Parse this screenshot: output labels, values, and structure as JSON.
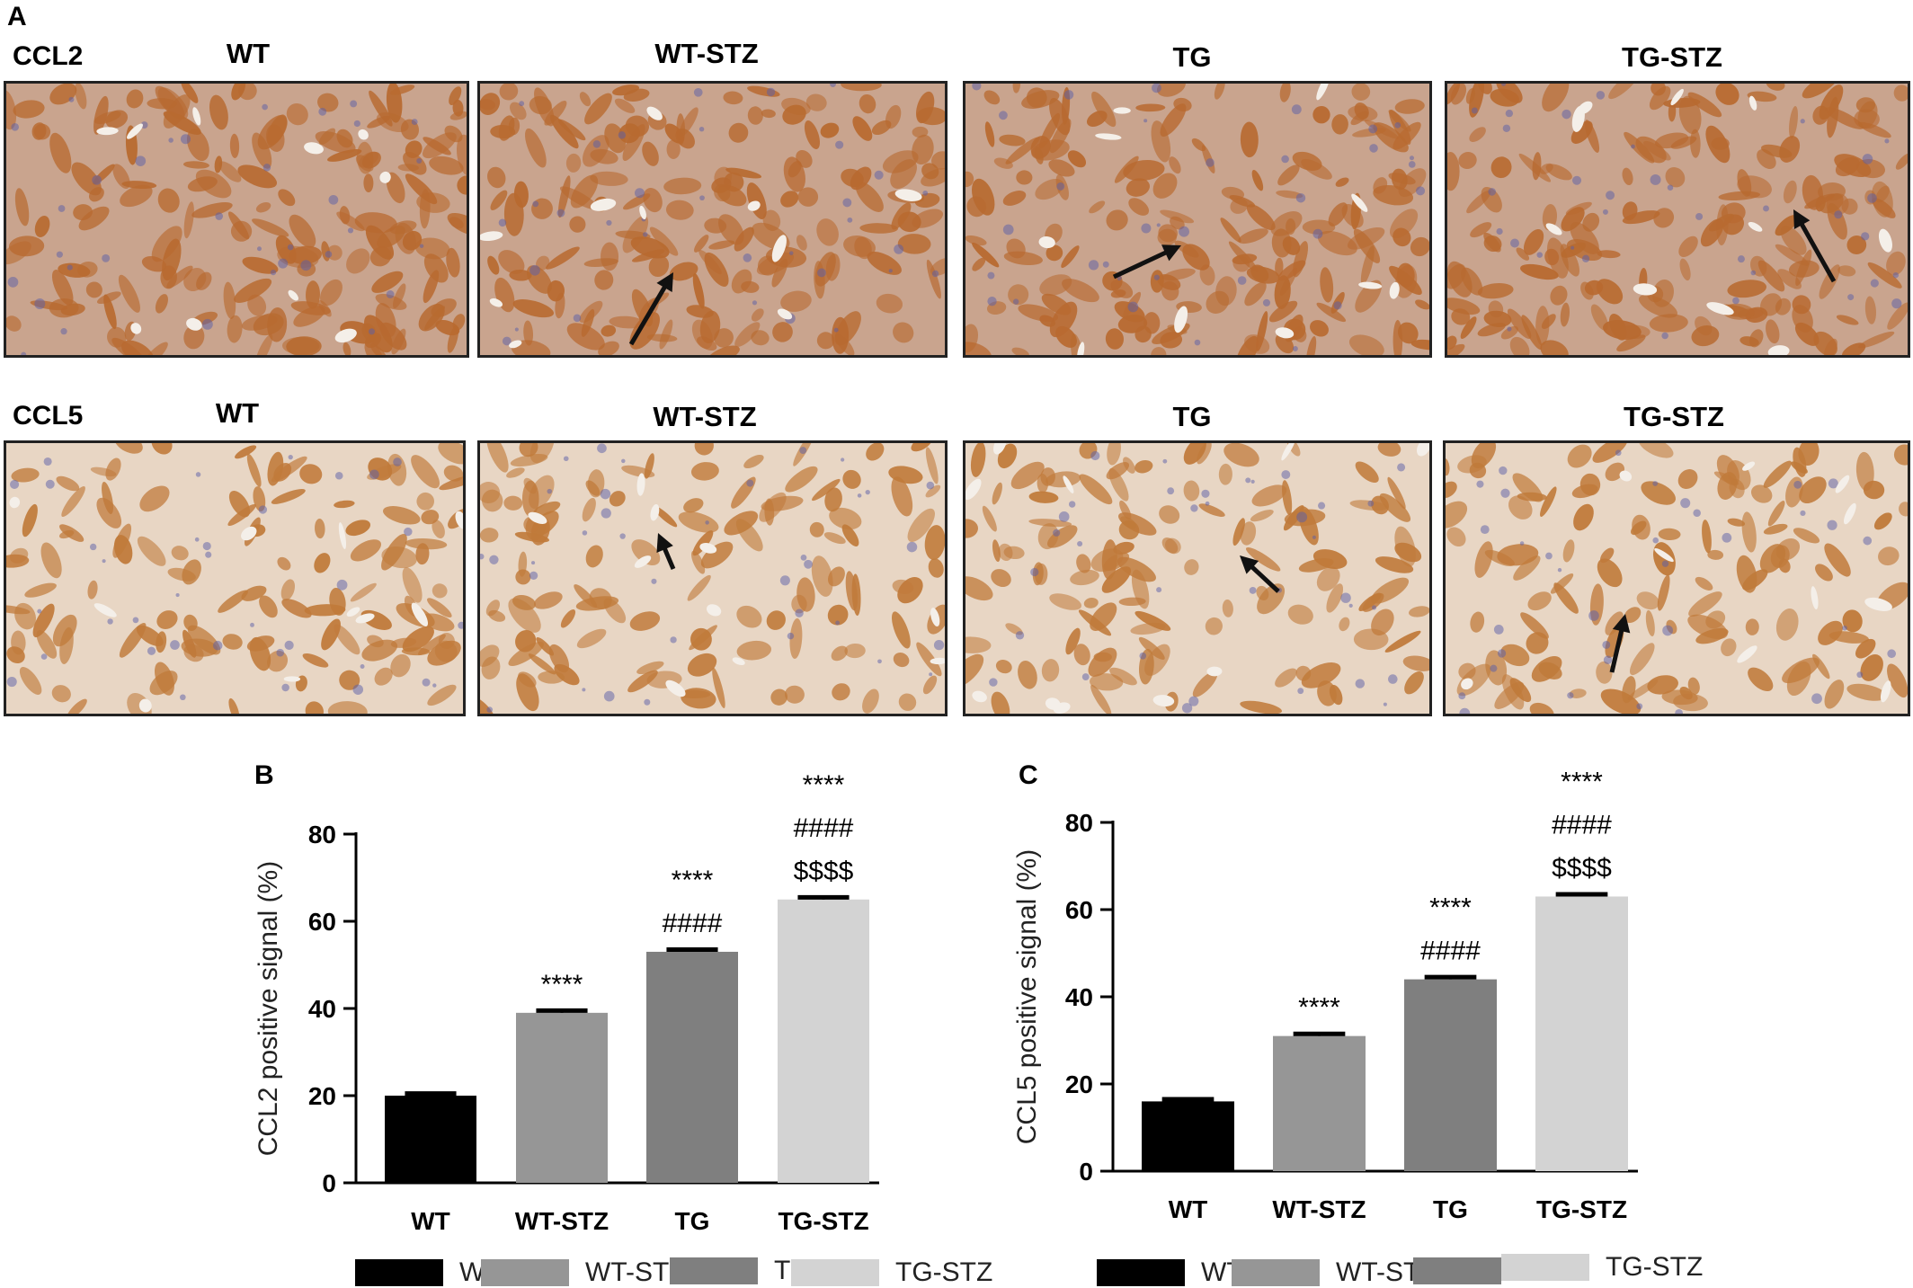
{
  "panel_labels": {
    "a": "A",
    "b": "B",
    "c": "C"
  },
  "micrographs": {
    "rows": [
      {
        "label": "CCL2",
        "columns": [
          "WT",
          "WT-STZ",
          "TG",
          "TG-STZ"
        ],
        "stain": "#b86a30",
        "background": "#c9a48e"
      },
      {
        "label": "CCL5",
        "columns": [
          "WT",
          "WT-STZ",
          "TG",
          "TG-STZ"
        ],
        "stain": "#c07a3a",
        "background": "#e8d6c4"
      }
    ]
  },
  "chart_data": [
    {
      "type": "bar",
      "panel": "B",
      "categories": [
        "WT",
        "WT-STZ",
        "TG",
        "TG-STZ"
      ],
      "values": [
        20,
        39,
        53,
        65
      ],
      "errors": [
        0.5,
        0.5,
        0.5,
        0.5
      ],
      "colors": [
        "#000000",
        "#969696",
        "#7f7f7f",
        "#d3d3d3"
      ],
      "ylabel": "CCL2 positive signal (%)",
      "ylim": [
        0,
        80
      ],
      "yticks": [
        0,
        20,
        40,
        60,
        80
      ],
      "significance": [
        [],
        [
          "****"
        ],
        [
          "****",
          "####"
        ],
        [
          "****",
          "####",
          "$$$$"
        ]
      ],
      "legend": [
        "WT",
        "WT-STZ",
        "TG",
        "TG-STZ"
      ],
      "legend_position": "bottom"
    },
    {
      "type": "bar",
      "panel": "C",
      "categories": [
        "WT",
        "WT-STZ",
        "TG",
        "TG-STZ"
      ],
      "values": [
        16,
        31,
        44,
        63
      ],
      "errors": [
        0.5,
        0.5,
        0.5,
        0.5
      ],
      "colors": [
        "#000000",
        "#969696",
        "#7f7f7f",
        "#d3d3d3"
      ],
      "ylabel": "CCL5 positive signal (%)",
      "ylim": [
        0,
        80
      ],
      "yticks": [
        0,
        20,
        40,
        60,
        80
      ],
      "significance": [
        [],
        [
          "****"
        ],
        [
          "****",
          "####"
        ],
        [
          "****",
          "####",
          "$$$$"
        ]
      ],
      "legend": [
        "WT",
        "WT-STZ",
        "TG",
        "TG-STZ"
      ],
      "legend_position": "bottom"
    }
  ]
}
